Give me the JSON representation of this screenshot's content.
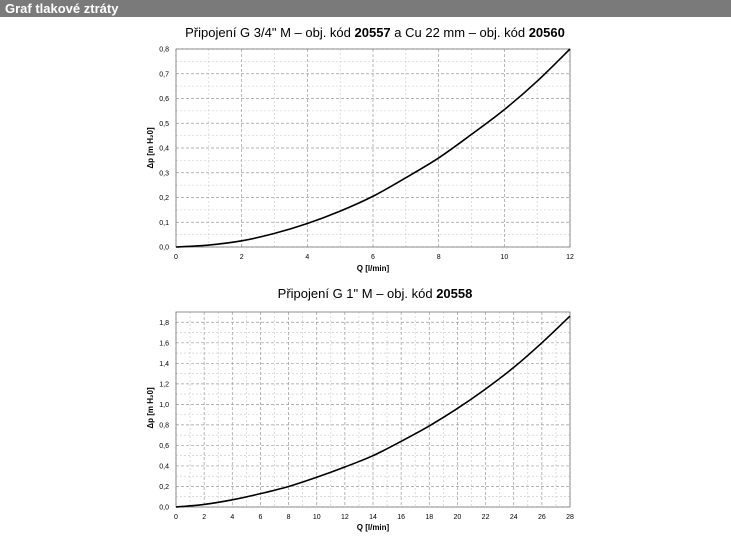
{
  "header": {
    "title": "Graf tlakové ztráty"
  },
  "chart_data": [
    {
      "type": "line",
      "title_parts": [
        "Připojení G 3/4\" M – obj. kód ",
        "20557",
        " a Cu 22 mm – obj. kód ",
        "20560"
      ],
      "xlabel": "Q [l/min]",
      "ylabel": "Δp [m H₂0]",
      "xlim": [
        0,
        12
      ],
      "ylim": [
        0,
        0.8
      ],
      "x_ticks": [
        0,
        2,
        4,
        6,
        8,
        10,
        12
      ],
      "y_ticks": [
        0.0,
        0.1,
        0.2,
        0.3,
        0.4,
        0.5,
        0.6,
        0.7,
        0.8
      ],
      "x_tick_labels": [
        "0",
        "2",
        "4",
        "6",
        "8",
        "10",
        "12"
      ],
      "y_tick_labels": [
        "0,0",
        "0,1",
        "0,2",
        "0,3",
        "0,4",
        "0,5",
        "0,6",
        "0,7",
        "0,8"
      ],
      "x_minor_step": 1,
      "y_minor_step": 0.05,
      "grid": true,
      "series": [
        {
          "x": [
            0,
            1,
            2,
            3,
            4,
            5,
            6,
            7,
            8,
            9,
            10,
            11,
            12
          ],
          "values": [
            0,
            0.008,
            0.025,
            0.055,
            0.095,
            0.145,
            0.205,
            0.28,
            0.36,
            0.455,
            0.555,
            0.67,
            0.8
          ]
        }
      ]
    },
    {
      "type": "line",
      "title_parts": [
        "Připojení G 1\" M – obj. kód ",
        "20558",
        "",
        ""
      ],
      "xlabel": "Q [l/min]",
      "ylabel": "Δp [m H₂0]",
      "xlim": [
        0,
        28
      ],
      "ylim": [
        0,
        1.9
      ],
      "x_ticks": [
        0,
        2,
        4,
        6,
        8,
        10,
        12,
        14,
        16,
        18,
        20,
        22,
        24,
        26,
        28
      ],
      "y_ticks": [
        0.0,
        0.2,
        0.4,
        0.6,
        0.8,
        1.0,
        1.2,
        1.4,
        1.6,
        1.8
      ],
      "x_tick_labels": [
        "0",
        "2",
        "4",
        "6",
        "8",
        "10",
        "12",
        "14",
        "16",
        "18",
        "20",
        "22",
        "24",
        "26",
        "28"
      ],
      "y_tick_labels": [
        "0,0",
        "0,2",
        "0,4",
        "0,6",
        "0,8",
        "1,0",
        "1,2",
        "1,4",
        "1,6",
        "1,8"
      ],
      "x_minor_step": 1,
      "y_minor_step": 0.1,
      "grid": true,
      "series": [
        {
          "x": [
            0,
            2,
            4,
            6,
            8,
            10,
            12,
            14,
            16,
            18,
            20,
            22,
            24,
            26,
            28
          ],
          "values": [
            0,
            0.025,
            0.07,
            0.13,
            0.2,
            0.29,
            0.39,
            0.5,
            0.64,
            0.79,
            0.96,
            1.15,
            1.36,
            1.6,
            1.86
          ]
        }
      ]
    }
  ]
}
